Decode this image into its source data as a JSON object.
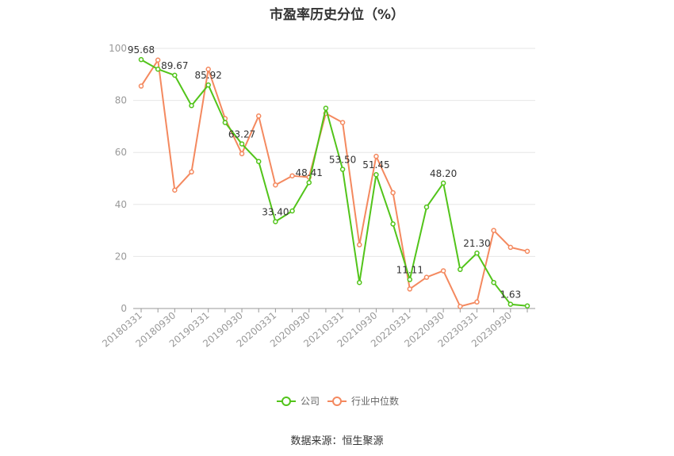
{
  "chart_data": {
    "type": "line",
    "title": "市盈率历史分位（%）",
    "x": [
      "20180331",
      "20180630",
      "20180930",
      "20181231",
      "20190331",
      "20190630",
      "20190930",
      "20191231",
      "20200331",
      "20200630",
      "20200930",
      "20201231",
      "20210331",
      "20210630",
      "20210930",
      "20211231",
      "20220331",
      "20220630",
      "20220930",
      "20221231",
      "20230331",
      "20230630",
      "20230930",
      "20231231"
    ],
    "x_tick_labels": [
      "20180331",
      "",
      "20180930",
      "",
      "20190331",
      "",
      "20190930",
      "",
      "20200331",
      "",
      "20200930",
      "",
      "20210331",
      "",
      "20210930",
      "",
      "20220331",
      "",
      "20220930",
      "",
      "20230331",
      "",
      "20230930",
      ""
    ],
    "ylim": [
      0,
      100
    ],
    "yticks": [
      0,
      20,
      40,
      60,
      80,
      100
    ],
    "grid": true,
    "legend_position": "bottom",
    "series": [
      {
        "name": "公司",
        "color": "#52c41a",
        "values": [
          95.68,
          92.0,
          89.67,
          78.0,
          85.92,
          71.5,
          63.27,
          56.5,
          33.4,
          37.5,
          48.41,
          77.0,
          53.5,
          10.0,
          51.45,
          32.5,
          11.11,
          39.0,
          48.2,
          15.0,
          21.3,
          10.0,
          1.63,
          1.0
        ],
        "labels": [
          "95.68",
          "",
          "89.67",
          "",
          "85.92",
          "",
          "63.27",
          "",
          "33.40",
          "",
          "48.41",
          "",
          "53.50",
          "",
          "51.45",
          "",
          "11.11",
          "",
          "48.20",
          "",
          "21.30",
          "",
          "1.63",
          ""
        ]
      },
      {
        "name": "行业中位数",
        "color": "#f4895f",
        "values": [
          85.5,
          95.5,
          45.5,
          52.5,
          92.0,
          73.0,
          59.5,
          74.0,
          47.5,
          51.0,
          50.5,
          75.0,
          71.5,
          24.5,
          58.5,
          44.5,
          7.5,
          12.0,
          14.5,
          0.8,
          2.5,
          30.0,
          23.5,
          22.0
        ]
      }
    ]
  },
  "footer": {
    "source": "数据来源：恒生聚源"
  }
}
